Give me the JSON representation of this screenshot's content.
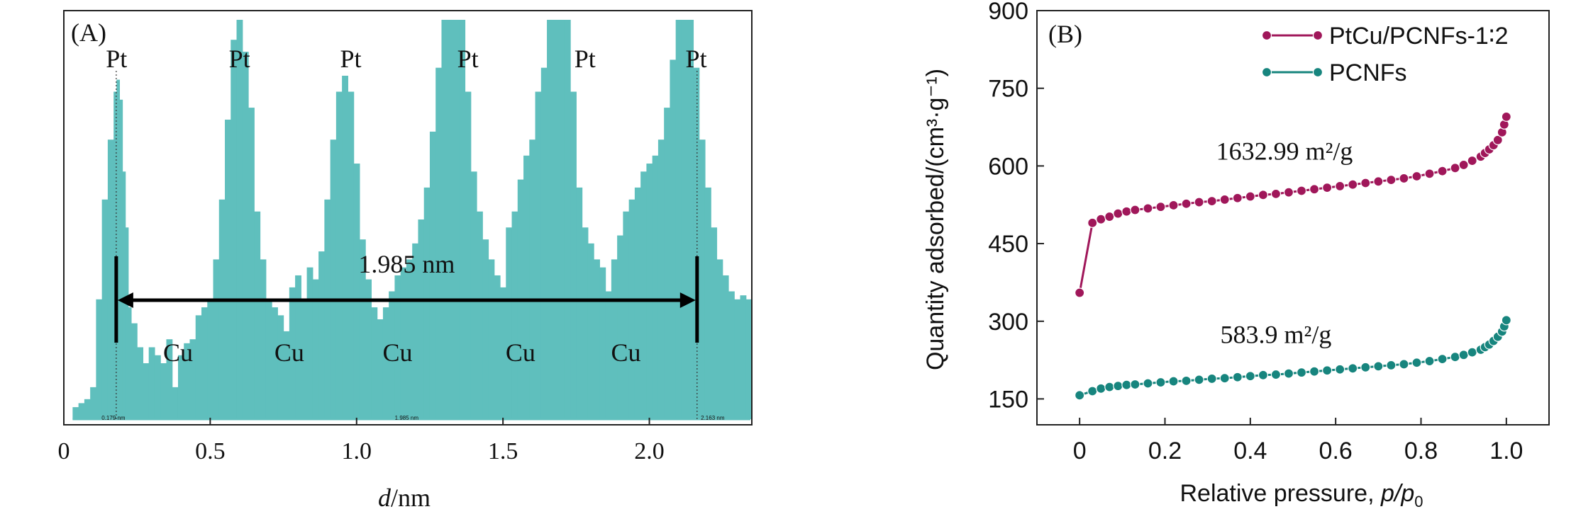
{
  "chart_data": [
    {
      "panel": "(A)",
      "type": "bar",
      "xlabel_italic": "d",
      "xlabel_unit": "/nm",
      "xlim": [
        0,
        2.35
      ],
      "xticks": [
        "0",
        "0.5",
        "1.0",
        "1.5",
        "2.0"
      ],
      "xtick_values": [
        0,
        0.5,
        1.0,
        1.5,
        2.0
      ],
      "ylim": [
        0,
        100
      ],
      "bar_color": "#5fbfbd",
      "profile": {
        "x": [
          0.03,
          0.05,
          0.07,
          0.09,
          0.11,
          0.13,
          0.15,
          0.17,
          0.18,
          0.19,
          0.2,
          0.21,
          0.22,
          0.23,
          0.25,
          0.27,
          0.29,
          0.31,
          0.33,
          0.35,
          0.37,
          0.39,
          0.41,
          0.43,
          0.45,
          0.47,
          0.49,
          0.51,
          0.53,
          0.55,
          0.57,
          0.59,
          0.61,
          0.63,
          0.65,
          0.67,
          0.69,
          0.71,
          0.73,
          0.75,
          0.77,
          0.79,
          0.81,
          0.83,
          0.85,
          0.87,
          0.89,
          0.91,
          0.93,
          0.95,
          0.97,
          0.99,
          1.01,
          1.03,
          1.05,
          1.07,
          1.09,
          1.11,
          1.13,
          1.15,
          1.17,
          1.19,
          1.21,
          1.23,
          1.25,
          1.27,
          1.29,
          1.31,
          1.33,
          1.35,
          1.37,
          1.39,
          1.41,
          1.43,
          1.45,
          1.47,
          1.49,
          1.51,
          1.53,
          1.55,
          1.57,
          1.59,
          1.61,
          1.63,
          1.65,
          1.67,
          1.69,
          1.71,
          1.73,
          1.75,
          1.77,
          1.79,
          1.81,
          1.83,
          1.85,
          1.87,
          1.89,
          1.91,
          1.93,
          1.95,
          1.97,
          1.99,
          2.01,
          2.03,
          2.05,
          2.07,
          2.09,
          2.11,
          2.13,
          2.15,
          2.17,
          2.19,
          2.21,
          2.23,
          2.25,
          2.27,
          2.29,
          2.31,
          2.33,
          2.35
        ],
        "y": [
          3,
          4,
          5,
          8,
          30,
          55,
          70,
          82,
          85,
          80,
          62,
          48,
          28,
          24,
          18,
          14,
          18,
          16,
          14,
          20,
          8,
          16,
          19,
          20,
          26,
          28,
          30,
          40,
          55,
          75,
          95,
          100,
          92,
          78,
          52,
          40,
          30,
          28,
          26,
          22,
          33,
          36,
          30,
          38,
          35,
          42,
          55,
          70,
          82,
          86,
          82,
          64,
          45,
          35,
          28,
          25,
          28,
          32,
          36,
          38,
          40,
          44,
          50,
          58,
          72,
          88,
          100,
          105,
          105,
          100,
          82,
          62,
          52,
          45,
          40,
          36,
          33,
          48,
          52,
          60,
          66,
          70,
          82,
          88,
          100,
          105,
          104,
          100,
          82,
          58,
          48,
          44,
          40,
          38,
          32,
          40,
          46,
          52,
          55,
          58,
          62,
          64,
          66,
          70,
          78,
          90,
          100,
          105,
          104,
          88,
          70,
          58,
          48,
          40,
          36,
          32,
          30,
          31,
          30,
          27
        ]
      },
      "peak_labels": [
        {
          "text": "Pt",
          "x": 0.18
        },
        {
          "text": "Pt",
          "x": 0.6
        },
        {
          "text": "Pt",
          "x": 0.98
        },
        {
          "text": "Pt",
          "x": 1.38
        },
        {
          "text": "Pt",
          "x": 1.78
        },
        {
          "text": "Pt",
          "x": 2.16
        }
      ],
      "valley_labels": [
        {
          "text": "Cu",
          "x": 0.39
        },
        {
          "text": "Cu",
          "x": 0.77
        },
        {
          "text": "Cu",
          "x": 1.14
        },
        {
          "text": "Cu",
          "x": 1.56
        },
        {
          "text": "Cu",
          "x": 1.92
        }
      ],
      "measurement": {
        "label": "1.985 nm",
        "x_start": 0.179,
        "x_end": 2.163
      },
      "inner_scale": {
        "left": "0.179 nm",
        "mid": "1.985 nm",
        "right": "2.163 nm"
      }
    },
    {
      "panel": "(B)",
      "type": "line",
      "xlabel": "Relative pressure, ",
      "xlabel_italic": "p/p",
      "xlabel_sub": "0",
      "ylabel": "Quantity adsorbed/(cm³·g⁻¹)",
      "xlim": [
        -0.1,
        1.1
      ],
      "ylim": [
        100,
        900
      ],
      "xticks": [
        "0",
        "0.2",
        "0.4",
        "0.6",
        "0.8",
        "1.0"
      ],
      "xtick_values": [
        0,
        0.2,
        0.4,
        0.6,
        0.8,
        1.0
      ],
      "yticks": [
        "150",
        "300",
        "450",
        "600",
        "750",
        "900"
      ],
      "ytick_values": [
        150,
        300,
        450,
        600,
        750,
        900
      ],
      "series": [
        {
          "name": "PtCu/PCNFs-1∶2",
          "color": "#a0175a",
          "x": [
            0.0,
            0.03,
            0.05,
            0.07,
            0.09,
            0.11,
            0.13,
            0.16,
            0.19,
            0.22,
            0.25,
            0.28,
            0.31,
            0.34,
            0.37,
            0.4,
            0.43,
            0.46,
            0.49,
            0.52,
            0.55,
            0.58,
            0.61,
            0.64,
            0.67,
            0.7,
            0.73,
            0.76,
            0.79,
            0.82,
            0.85,
            0.88,
            0.9,
            0.92,
            0.94,
            0.95,
            0.96,
            0.97,
            0.98,
            0.99,
            0.995,
            1.0
          ],
          "y": [
            355,
            490,
            497,
            502,
            508,
            512,
            515,
            518,
            521,
            524,
            527,
            530,
            532,
            535,
            538,
            541,
            544,
            546,
            549,
            552,
            555,
            558,
            561,
            564,
            567,
            570,
            573,
            576,
            580,
            585,
            590,
            596,
            602,
            610,
            618,
            625,
            632,
            640,
            650,
            665,
            680,
            695
          ]
        },
        {
          "name": "PCNFs",
          "color": "#17857e",
          "x": [
            0.0,
            0.03,
            0.05,
            0.07,
            0.09,
            0.11,
            0.13,
            0.16,
            0.19,
            0.22,
            0.25,
            0.28,
            0.31,
            0.34,
            0.37,
            0.4,
            0.43,
            0.46,
            0.49,
            0.52,
            0.55,
            0.58,
            0.61,
            0.64,
            0.67,
            0.7,
            0.73,
            0.76,
            0.79,
            0.82,
            0.85,
            0.88,
            0.9,
            0.92,
            0.94,
            0.95,
            0.96,
            0.97,
            0.98,
            0.99,
            0.995,
            1.0
          ],
          "y": [
            157,
            165,
            170,
            173,
            175,
            177,
            178,
            180,
            182,
            184,
            185,
            187,
            189,
            190,
            192,
            194,
            196,
            197,
            199,
            201,
            203,
            205,
            207,
            209,
            211,
            213,
            215,
            217,
            220,
            223,
            227,
            231,
            235,
            240,
            245,
            250,
            255,
            262,
            270,
            280,
            290,
            302
          ]
        }
      ],
      "annotations": [
        {
          "text": "1632.99 m²/g",
          "x": 0.48,
          "y": 612
        },
        {
          "text": "583.9 m²/g",
          "x": 0.46,
          "y": 258
        }
      ],
      "legend_position": "top-right"
    }
  ]
}
